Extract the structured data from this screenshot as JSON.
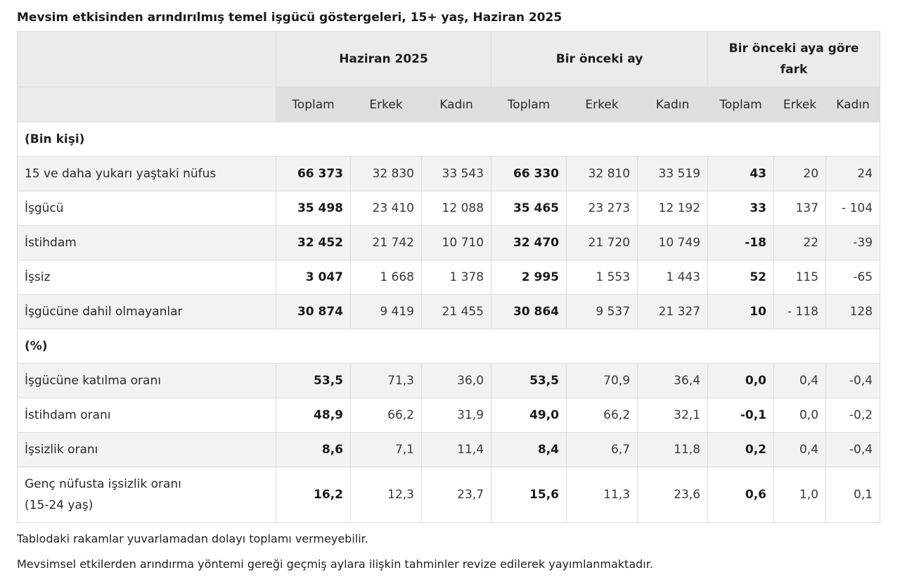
{
  "title": "Mevsim etkisinden arındırılmış temel işgücü göstergeleri, 15+ yaş, Haziran 2025",
  "groups": {
    "current": "Haziran 2025",
    "previous": "Bir önceki ay",
    "diff_line1": "Bir önceki aya göre",
    "diff_line2": "fark"
  },
  "subheaders": {
    "total": "Toplam",
    "male": "Erkek",
    "female": "Kadın"
  },
  "sections": {
    "thousands": "(Bin kişi)",
    "percent": "(%)"
  },
  "rows": [
    {
      "label": "15 ve daha yukarı yaştaki nüfus",
      "values": [
        "66 373",
        "32 830",
        "33 543",
        "66 330",
        "32 810",
        "33 519",
        "43",
        "20",
        "24"
      ]
    },
    {
      "label": "İşgücü",
      "values": [
        "35 498",
        "23 410",
        "12 088",
        "35 465",
        "23 273",
        "12 192",
        "33",
        "137",
        "- 104"
      ]
    },
    {
      "label": "İstihdam",
      "values": [
        "32 452",
        "21 742",
        "10 710",
        "32 470",
        "21 720",
        "10 749",
        "-18",
        "22",
        "-39"
      ]
    },
    {
      "label": "İşsiz",
      "values": [
        "3 047",
        "1 668",
        "1 378",
        "2 995",
        "1 553",
        "1 443",
        "52",
        "115",
        "-65"
      ]
    },
    {
      "label": "İşgücüne dahil olmayanlar",
      "values": [
        "30 874",
        "9 419",
        "21 455",
        "30 864",
        "9 537",
        "21 327",
        "10",
        "- 118",
        "128"
      ]
    },
    {
      "label": "İşgücüne katılma oranı",
      "values": [
        "53,5",
        "71,3",
        "36,0",
        "53,5",
        "70,9",
        "36,4",
        "0,0",
        "0,4",
        "-0,4"
      ]
    },
    {
      "label": "İstihdam oranı",
      "values": [
        "48,9",
        "66,2",
        "31,9",
        "49,0",
        "66,2",
        "32,1",
        "-0,1",
        "0,0",
        "-0,2"
      ]
    },
    {
      "label": "İşsizlik oranı",
      "values": [
        "8,6",
        "7,1",
        "11,4",
        "8,4",
        "6,7",
        "11,8",
        "0,2",
        "0,4",
        "-0,4"
      ]
    },
    {
      "label_line1": "Genç nüfusta işsizlik oranı",
      "label_line2": "(15-24 yaş)",
      "values": [
        "16,2",
        "12,3",
        "23,7",
        "15,6",
        "11,3",
        "23,6",
        "0,6",
        "1,0",
        "0,1"
      ]
    }
  ],
  "notes": [
    "Tablodaki rakamlar yuvarlamadan dolayı toplamı vermeyebilir.",
    "Mevsimsel etkilerden arındırma yöntemi gereği geçmiş aylara ilişkin tahminler revize edilerek yayımlanmaktadır."
  ]
}
